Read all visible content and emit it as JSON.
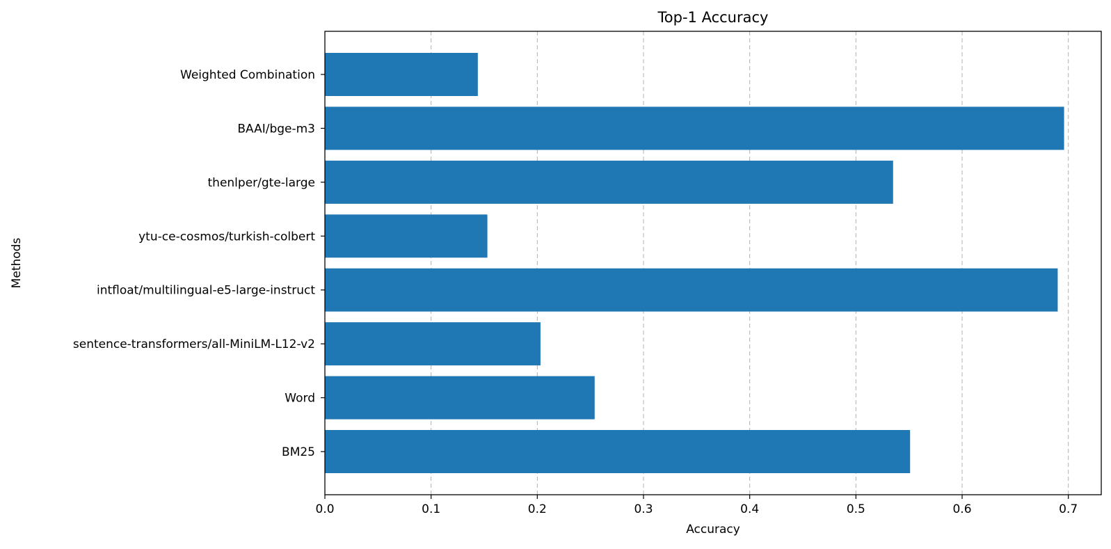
{
  "chart_data": {
    "type": "bar",
    "orientation": "horizontal",
    "title": "Top-1 Accuracy",
    "xlabel": "Accuracy",
    "ylabel": "Methods",
    "categories": [
      "BM25",
      "Word",
      "sentence-transformers/all-MiniLM-L12-v2",
      "intfloat/multilingual-e5-large-instruct",
      "ytu-ce-cosmos/turkish-colbert",
      "thenlper/gte-large",
      "BAAI/bge-m3",
      "Weighted Combination"
    ],
    "values": [
      0.551,
      0.254,
      0.203,
      0.69,
      0.153,
      0.535,
      0.696,
      0.144
    ],
    "xlim": [
      0,
      0.731
    ],
    "xticks": [
      0.0,
      0.1,
      0.2,
      0.3,
      0.4,
      0.5,
      0.6,
      0.7
    ],
    "xtick_labels": [
      "0.0",
      "0.1",
      "0.2",
      "0.3",
      "0.4",
      "0.5",
      "0.6",
      "0.7"
    ],
    "grid": "x-dashed",
    "bar_color": "#1f77b4",
    "grid_color": "#b0b0b0"
  }
}
